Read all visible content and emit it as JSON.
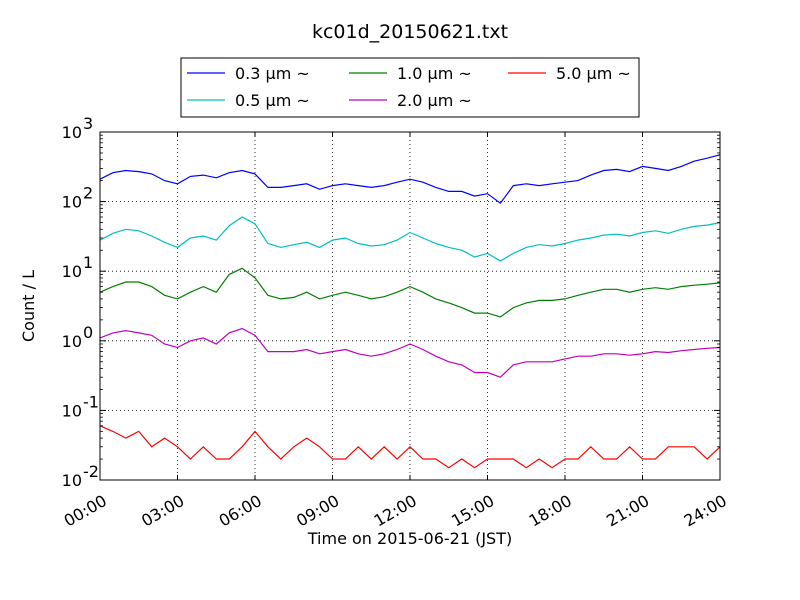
{
  "chart_data": {
    "type": "line",
    "title": "kc01d_20150621.txt",
    "xlabel": "Time on 2015-06-21 (JST)",
    "ylabel": "Count / L",
    "yscale": "log",
    "ylim": [
      0.01,
      1000
    ],
    "xlim": [
      "00:00",
      "24:00"
    ],
    "grid": true,
    "legend_position": "top (above plot)",
    "x_ticks": [
      "00:00",
      "03:00",
      "06:00",
      "09:00",
      "12:00",
      "15:00",
      "18:00",
      "21:00",
      "24:00"
    ],
    "y_ticks": [
      {
        "base": "10",
        "exp": "-2"
      },
      {
        "base": "10",
        "exp": "-1"
      },
      {
        "base": "10",
        "exp": "0"
      },
      {
        "base": "10",
        "exp": "1"
      },
      {
        "base": "10",
        "exp": "2"
      },
      {
        "base": "10",
        "exp": "3"
      }
    ],
    "x_hours": [
      0,
      0.5,
      1,
      1.5,
      2,
      2.5,
      3,
      3.5,
      4,
      4.5,
      5,
      5.5,
      6,
      6.5,
      7,
      7.5,
      8,
      8.5,
      9,
      9.5,
      10,
      10.5,
      11,
      11.5,
      12,
      12.5,
      13,
      13.5,
      14,
      14.5,
      15,
      15.5,
      16,
      16.5,
      17,
      17.5,
      18,
      18.5,
      19,
      19.5,
      20,
      20.5,
      21,
      21.5,
      22,
      22.5,
      23,
      23.5,
      24
    ],
    "series": [
      {
        "name": "0.3 μm ~",
        "color": "#0000ff",
        "values": [
          210,
          260,
          280,
          270,
          250,
          200,
          180,
          230,
          240,
          220,
          260,
          280,
          250,
          160,
          160,
          170,
          180,
          150,
          170,
          180,
          170,
          160,
          170,
          190,
          210,
          190,
          160,
          140,
          140,
          120,
          130,
          95,
          170,
          180,
          170,
          180,
          190,
          200,
          240,
          280,
          290,
          270,
          320,
          300,
          280,
          320,
          380,
          420,
          470
        ]
      },
      {
        "name": "0.5 μm ~",
        "color": "#00bfbf",
        "values": [
          28,
          35,
          40,
          38,
          32,
          26,
          22,
          30,
          32,
          28,
          45,
          60,
          48,
          25,
          22,
          24,
          26,
          22,
          28,
          30,
          25,
          23,
          24,
          28,
          36,
          30,
          25,
          22,
          20,
          16,
          18,
          14,
          18,
          22,
          24,
          23,
          25,
          28,
          30,
          33,
          34,
          32,
          36,
          38,
          35,
          40,
          44,
          46,
          50
        ]
      },
      {
        "name": "1.0 μm ~",
        "color": "#008000",
        "values": [
          5,
          6,
          7,
          7,
          6,
          4.5,
          4,
          5,
          6,
          5,
          9,
          11,
          8,
          4.5,
          4,
          4.2,
          5,
          4,
          4.5,
          5,
          4.5,
          4,
          4.3,
          5,
          6,
          5,
          4,
          3.5,
          3,
          2.5,
          2.5,
          2.2,
          3,
          3.5,
          3.8,
          3.8,
          4,
          4.5,
          5,
          5.5,
          5.5,
          5,
          5.5,
          5.8,
          5.5,
          6,
          6.3,
          6.5,
          6.8
        ]
      },
      {
        "name": "2.0 μm ~",
        "color": "#bf00bf",
        "values": [
          1.1,
          1.3,
          1.4,
          1.3,
          1.2,
          0.9,
          0.8,
          1.0,
          1.1,
          0.9,
          1.3,
          1.5,
          1.2,
          0.7,
          0.7,
          0.7,
          0.75,
          0.65,
          0.7,
          0.75,
          0.65,
          0.6,
          0.65,
          0.75,
          0.9,
          0.75,
          0.6,
          0.5,
          0.45,
          0.35,
          0.35,
          0.3,
          0.45,
          0.5,
          0.5,
          0.5,
          0.55,
          0.6,
          0.6,
          0.65,
          0.65,
          0.62,
          0.65,
          0.7,
          0.68,
          0.72,
          0.75,
          0.78,
          0.8
        ]
      },
      {
        "name": "5.0 μm ~",
        "color": "#ff0000",
        "values": [
          0.06,
          0.05,
          0.04,
          0.05,
          0.03,
          0.04,
          0.03,
          0.02,
          0.03,
          0.02,
          0.02,
          0.03,
          0.05,
          0.03,
          0.02,
          0.03,
          0.04,
          0.03,
          0.02,
          0.02,
          0.03,
          0.02,
          0.03,
          0.02,
          0.03,
          0.02,
          0.02,
          0.015,
          0.02,
          0.015,
          0.02,
          0.02,
          0.02,
          0.015,
          0.02,
          0.015,
          0.02,
          0.02,
          0.03,
          0.02,
          0.02,
          0.03,
          0.02,
          0.02,
          0.03,
          0.03,
          0.03,
          0.02,
          0.03
        ]
      }
    ]
  }
}
